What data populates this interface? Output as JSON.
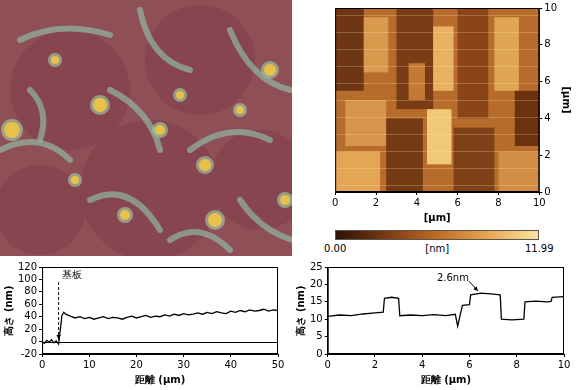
{
  "afm_image": {
    "xlim": [
      0,
      10
    ],
    "xticks": [
      0,
      2,
      4,
      6,
      8,
      10
    ],
    "ylim": [
      0,
      10
    ],
    "yticks": [
      0,
      2,
      4,
      6,
      8,
      10
    ],
    "x_label": "[μm]",
    "y_label": "[μm]",
    "colorbar": {
      "range": [
        0,
        11.99
      ],
      "ticks": [
        {
          "value": 0,
          "label": "0.00"
        },
        11.99
      ],
      "label": "[nm]"
    }
  },
  "chart_data": [
    {
      "type": "line",
      "x": [
        0,
        0.5,
        1,
        1.5,
        2,
        2.5,
        3,
        3.5,
        3.8,
        4.2,
        4.6,
        5,
        6,
        7,
        8,
        9,
        10,
        11,
        12,
        13,
        14,
        15,
        16,
        17,
        18,
        19,
        20,
        21,
        22,
        23,
        24,
        25,
        26,
        27,
        28,
        29,
        30,
        31,
        32,
        33,
        34,
        35,
        36,
        37,
        38,
        39,
        40,
        41,
        42,
        43,
        44,
        45,
        46,
        47,
        48,
        49,
        50
      ],
      "values": [
        0,
        -3,
        2,
        -1,
        3,
        -2,
        1,
        -4,
        15,
        42,
        47,
        44,
        41,
        38,
        40,
        37,
        39,
        36,
        38,
        40,
        37,
        39,
        38,
        36,
        39,
        41,
        38,
        40,
        42,
        39,
        41,
        40,
        43,
        41,
        44,
        42,
        45,
        43,
        44,
        46,
        44,
        47,
        45,
        48,
        46,
        45,
        49,
        47,
        50,
        48,
        51,
        49,
        50,
        52,
        49,
        51,
        50
      ],
      "color": "#000000",
      "xlim": [
        0,
        50
      ],
      "xticks": [
        0,
        10,
        20,
        30,
        40,
        50
      ],
      "ylim": [
        -20,
        120
      ],
      "yticks": [
        -20,
        0,
        20,
        40,
        60,
        80,
        100,
        120
      ],
      "x_label": "距離 (μm)",
      "y_label": "高さ (nm)",
      "annotations": [
        {
          "text": "基板",
          "x": 3.5,
          "y": 0
        }
      ],
      "grid": false
    },
    {
      "type": "line",
      "x": [
        0,
        0.5,
        1,
        1.5,
        2,
        2.35,
        2.4,
        2.7,
        3.0,
        3.05,
        3.5,
        4,
        4.5,
        5,
        5.4,
        5.5,
        5.6,
        5.7,
        6.0,
        6.05,
        6.5,
        7,
        7.3,
        7.35,
        7.8,
        8.3,
        8.35,
        8.8,
        9.3,
        9.45,
        9.5,
        10
      ],
      "values": [
        10.8,
        11.2,
        11,
        11.5,
        11.8,
        12,
        16,
        16.3,
        16,
        11,
        11.2,
        11,
        11.3,
        11,
        11.4,
        8,
        11,
        14,
        14.2,
        17,
        17.5,
        17.2,
        17,
        10,
        9.8,
        10,
        15,
        15.2,
        15,
        15.1,
        16.3,
        16.5
      ],
      "color": "#000000",
      "xlim": [
        0,
        10
      ],
      "xticks": [
        0,
        2,
        4,
        6,
        8,
        10
      ],
      "ylim": [
        0,
        25
      ],
      "yticks": [
        0,
        5,
        10,
        15,
        20,
        25
      ],
      "x_label": "距離 (μm)",
      "y_label": "高さ (nm)",
      "annotations": [
        {
          "text": "2.6nm",
          "x": 6.4,
          "y": 17.5
        }
      ],
      "grid": false
    }
  ]
}
